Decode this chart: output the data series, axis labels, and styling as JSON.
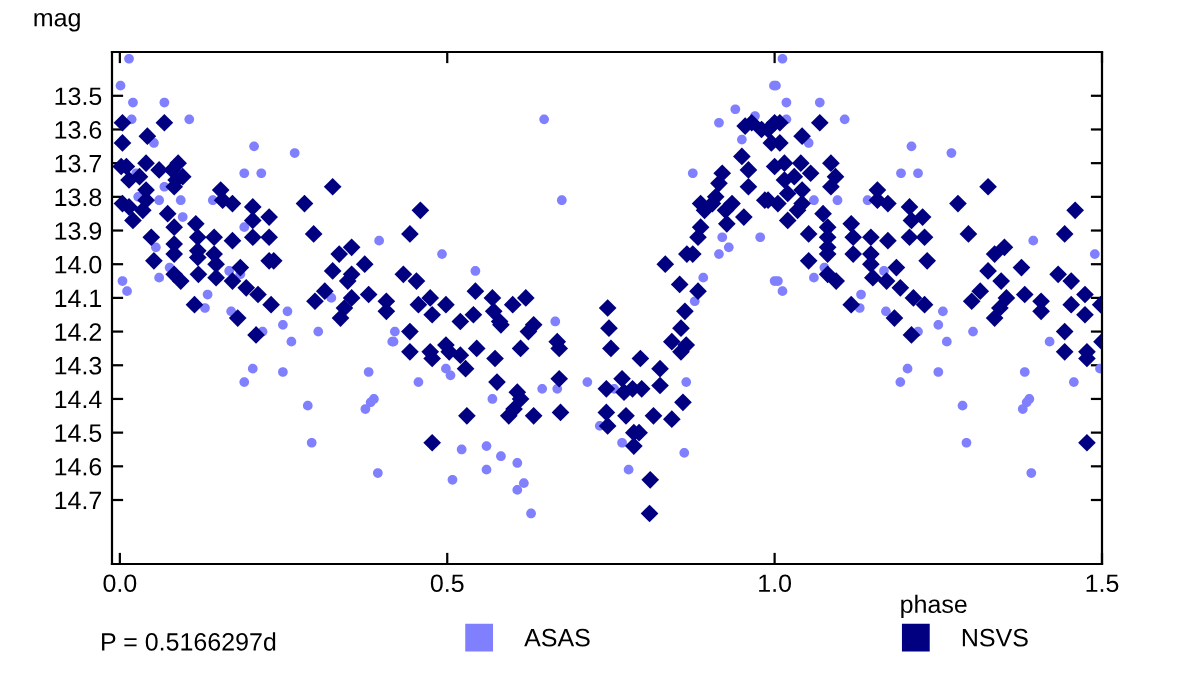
{
  "chart_data": {
    "type": "scatter",
    "xlabel": "phase",
    "ylabel": "mag",
    "xlim": [
      -0.012,
      1.5
    ],
    "xticks": [
      {
        "value": 0,
        "label": "0.0"
      },
      0.5,
      {
        "value": 1,
        "label": "1.0"
      },
      1.5
    ],
    "ylim": [
      14.89,
      13.37
    ],
    "yticks": [
      13.5,
      13.6,
      13.7,
      13.8,
      13.9,
      {
        "value": 14,
        "label": "14.0"
      },
      14.1,
      14.2,
      14.3,
      14.4,
      14.5,
      14.6,
      14.7
    ],
    "grid": false,
    "legend": "bottom",
    "annotations": [
      "P = 0.5166297d"
    ],
    "series": [
      {
        "name": "ASAS",
        "color": "#8080ff",
        "marker": "circle",
        "x": [
          0.014,
          0.001,
          0.02,
          0.018,
          0.068,
          0.106,
          0.052,
          0.004,
          0.011,
          0.025,
          0.028,
          0.06,
          0.068,
          0.055,
          0.06,
          0.076,
          0.093,
          0.096,
          0.12,
          0.134,
          0.13,
          0.142,
          0.167,
          0.17,
          0.184,
          0.19,
          0.205,
          0.216,
          0.19,
          0.19,
          0.203,
          0.218,
          0.249,
          0.249,
          0.256,
          0.262,
          0.267,
          0.287,
          0.293,
          0.303,
          0.323,
          0.38,
          0.375,
          0.383,
          0.388,
          0.394,
          0.396,
          0.416,
          0.42,
          0.418,
          0.456,
          0.492,
          0.498,
          0.508,
          0.505,
          0.522,
          0.543,
          0.56,
          0.56,
          0.569,
          0.582,
          0.607,
          0.607,
          0.617,
          0.628,
          0.648,
          0.645,
          0.665,
          0.668,
          0.675,
          0.714,
          0.733,
          0.755,
          0.767,
          0.777,
          0.862,
          0.865,
          0.875,
          0.878,
          0.891,
          0.915,
          0.92,
          0.915,
          0.93,
          0.94,
          0.95,
          0.978,
          0.999,
          1.0,
          0.97,
          1.012,
          1.002,
          1.018,
          1.018,
          1.069,
          1.107,
          1.052,
          1.005,
          1.012,
          1.06,
          1.076,
          1.096,
          1.06,
          1.132,
          1.13,
          1.142,
          1.167,
          1.17,
          1.193,
          1.209,
          1.219,
          1.192,
          1.203,
          1.219,
          1.25,
          1.25,
          1.257,
          1.263,
          1.27,
          1.287,
          1.293,
          1.303,
          1.382,
          1.379,
          1.385,
          1.389,
          1.392,
          1.395,
          1.42,
          1.457,
          1.489,
          1.497
        ],
        "values": [
          13.39,
          13.47,
          13.52,
          13.57,
          13.52,
          13.57,
          13.64,
          14.05,
          14.08,
          13.73,
          13.8,
          13.81,
          13.77,
          13.95,
          14.04,
          14.01,
          13.81,
          13.86,
          null,
          14.09,
          14.13,
          13.81,
          14.02,
          14.14,
          14.03,
          13.73,
          13.65,
          13.73,
          13.89,
          14.35,
          14.31,
          14.2,
          14.18,
          14.32,
          14.14,
          14.23,
          13.67,
          14.42,
          14.53,
          14.2,
          14.1,
          14.32,
          14.43,
          14.41,
          14.4,
          14.62,
          13.93,
          14.23,
          14.2,
          14.23,
          14.35,
          13.97,
          14.31,
          14.64,
          14.33,
          14.55,
          14.02,
          14.54,
          14.61,
          14.4,
          14.57,
          14.59,
          14.67,
          14.65,
          14.74,
          13.57,
          14.37,
          14.17,
          14.37,
          13.81,
          14.35,
          14.48,
          14.37,
          14.53,
          14.61,
          14.56,
          14.35,
          13.73,
          14.11,
          14.04,
          13.58,
          13.92,
          13.97,
          13.95,
          13.54,
          13.63,
          13.92,
          13.47,
          14.05,
          13.56,
          13.39,
          13.47,
          13.52,
          13.57,
          13.52,
          13.57,
          13.64,
          14.05,
          14.08,
          13.81,
          14.01,
          13.81,
          14.04,
          14.09,
          14.13,
          13.81,
          14.02,
          14.14,
          13.73,
          13.65,
          13.73,
          14.35,
          14.31,
          14.2,
          14.18,
          14.32,
          14.14,
          14.23,
          13.67,
          14.42,
          14.53,
          14.2,
          14.32,
          14.43,
          14.41,
          14.4,
          14.62,
          13.93,
          14.23,
          14.35,
          13.97,
          14.31
        ]
      },
      {
        "name": "NSVS",
        "color": "#000080",
        "marker": "diamond",
        "x": [
          0.004,
          0.004,
          0.002,
          0.01,
          0.004,
          0.014,
          0.02,
          0.014,
          0.03,
          0.04,
          0.042,
          0.035,
          0.04,
          0.04,
          0.048,
          0.052,
          0.06,
          0.068,
          0.073,
          0.08,
          0.089,
          0.086,
          0.083,
          0.083,
          0.083,
          0.083,
          0.083,
          0.093,
          0.096,
          0.116,
          0.119,
          0.119,
          0.119,
          0.114,
          0.12,
          0.144,
          0.144,
          0.147,
          0.147,
          0.154,
          0.157,
          0.172,
          0.172,
          0.172,
          0.18,
          0.184,
          0.193,
          0.203,
          0.203,
          0.203,
          0.208,
          0.211,
          0.228,
          0.228,
          0.228,
          0.231,
          0.235,
          0.282,
          0.296,
          0.298,
          0.313,
          0.325,
          0.325,
          0.335,
          0.337,
          0.343,
          0.348,
          0.354,
          0.354,
          0.354,
          0.374,
          0.38,
          0.407,
          0.407,
          0.433,
          0.443,
          0.459,
          0.453,
          0.443,
          0.443,
          0.456,
          0.474,
          0.477,
          0.474,
          0.477,
          0.477,
          0.498,
          0.498,
          0.503,
          0.52,
          0.52,
          0.528,
          0.53,
          0.54,
          0.545,
          0.543,
          0.569,
          0.571,
          0.573,
          0.576,
          0.58,
          0.582,
          0.594,
          0.6,
          0.602,
          0.607,
          0.612,
          0.612,
          0.62,
          0.624,
          0.632,
          0.632,
          0.668,
          0.671,
          0.671,
          0.673,
          0.745,
          0.747,
          0.75,
          0.743,
          0.743,
          0.745,
          0.767,
          0.77,
          0.773,
          0.783,
          0.785,
          0.785,
          0.795,
          0.797,
          0.793,
          0.81,
          0.809,
          0.815,
          0.825,
          0.825,
          0.833,
          0.843,
          0.843,
          0.855,
          0.857,
          0.857,
          0.86,
          0.863,
          0.865,
          0.866,
          0.875,
          0.883,
          0.883,
          0.887,
          0.887,
          0.893,
          0.905,
          0.91,
          0.915,
          0.92,
          0.925,
          0.927,
          0.935,
          0.95,
          0.953,
          0.955,
          0.96,
          0.96,
          0.965,
          0.98,
          0.985,
          0.995,
          1.0,
          0.99,
          1.008,
          1.008,
          1.0,
          1.015,
          1.015,
          0.99,
          1.005,
          1.02,
          1.02,
          1.03,
          1.035,
          1.04,
          1.042,
          1.042,
          1.042,
          1.055,
          1.052,
          1.052,
          1.069,
          1.074,
          1.081,
          1.081,
          1.081,
          1.081,
          1.081,
          1.086,
          1.086,
          1.093,
          1.094,
          1.117,
          1.12,
          1.12,
          1.117,
          1.147,
          1.147,
          1.147,
          1.15,
          1.157,
          1.157,
          1.173,
          1.173,
          1.171,
          1.183,
          1.186,
          1.192,
          1.206,
          1.209,
          1.206,
          1.209,
          1.212,
          1.226,
          1.229,
          1.233,
          1.229,
          1.28,
          1.296,
          1.301,
          1.314,
          1.326,
          1.326,
          1.336,
          1.336,
          1.344,
          1.346,
          1.351,
          1.354,
          1.377,
          1.382,
          1.407,
          1.407,
          1.433,
          1.443,
          1.443,
          1.443,
          1.453,
          1.453,
          1.459,
          1.474,
          1.474,
          1.477,
          1.477,
          1.477,
          1.498,
          1.5
        ],
        "values": [
          13.58,
          13.64,
          13.71,
          13.71,
          13.82,
          13.83,
          13.87,
          13.75,
          13.74,
          13.7,
          13.62,
          13.84,
          13.81,
          13.78,
          13.92,
          13.99,
          13.72,
          13.58,
          13.85,
          13.72,
          13.7,
          13.75,
          13.77,
          13.89,
          13.94,
          13.97,
          14.03,
          14.05,
          13.74,
          13.88,
          13.92,
          13.96,
          13.98,
          14.12,
          14.03,
          13.92,
          13.97,
          14.0,
          14.04,
          13.78,
          13.81,
          13.82,
          13.93,
          14.05,
          14.16,
          14.01,
          14.07,
          13.83,
          13.87,
          13.92,
          14.21,
          14.09,
          13.86,
          13.92,
          13.99,
          14.12,
          13.99,
          13.82,
          13.91,
          14.11,
          14.08,
          13.77,
          14.02,
          13.97,
          14.16,
          14.13,
          14.05,
          14.03,
          13.95,
          14.1,
          14.0,
          14.09,
          14.11,
          14.14,
          14.03,
          13.91,
          13.84,
          14.05,
          14.2,
          14.26,
          14.12,
          14.1,
          14.15,
          14.26,
          14.28,
          14.53,
          14.12,
          14.24,
          14.26,
          14.17,
          14.27,
          14.31,
          14.45,
          14.15,
          14.25,
          14.08,
          14.1,
          14.14,
          14.28,
          14.35,
          14.17,
          14.18,
          14.45,
          14.12,
          14.43,
          14.38,
          14.25,
          14.4,
          14.1,
          14.2,
          14.18,
          14.45,
          14.23,
          14.25,
          14.34,
          14.44,
          14.13,
          14.19,
          14.25,
          14.37,
          14.44,
          14.48,
          14.34,
          14.38,
          14.45,
          14.37,
          14.5,
          14.54,
          14.28,
          14.37,
          14.5,
          14.64,
          14.74,
          14.45,
          14.31,
          14.36,
          14.0,
          14.23,
          14.46,
          14.06,
          14.19,
          14.26,
          14.41,
          14.14,
          14.24,
          13.97,
          13.97,
          14.08,
          13.92,
          13.82,
          13.89,
          13.84,
          13.82,
          13.8,
          13.76,
          13.73,
          13.84,
          13.88,
          13.82,
          13.68,
          13.86,
          13.59,
          13.72,
          13.77,
          13.58,
          13.6,
          13.81,
          13.64,
          13.58,
          13.6,
          13.58,
          13.64,
          13.71,
          13.7,
          13.75,
          13.81,
          13.82,
          13.79,
          13.87,
          13.74,
          13.84,
          13.7,
          13.62,
          13.78,
          13.82,
          13.73,
          13.91,
          13.99,
          13.58,
          13.85,
          13.89,
          13.92,
          13.95,
          13.97,
          14.03,
          13.7,
          13.77,
          13.74,
          14.05,
          13.88,
          13.92,
          13.97,
          14.12,
          13.92,
          13.97,
          14.0,
          14.04,
          13.78,
          13.81,
          13.82,
          13.93,
          14.05,
          14.16,
          14.01,
          14.07,
          13.83,
          13.87,
          13.92,
          14.21,
          14.1,
          13.86,
          13.92,
          13.99,
          14.12,
          13.82,
          13.91,
          14.11,
          14.08,
          13.77,
          14.02,
          13.97,
          14.16,
          14.13,
          14.05,
          13.95,
          14.1,
          14.01,
          14.09,
          14.11,
          14.14,
          14.03,
          13.91,
          14.2,
          14.26,
          14.05,
          14.12,
          13.84,
          14.09,
          14.15,
          14.26,
          14.28,
          14.53,
          14.12,
          14.23
        ]
      }
    ]
  }
}
